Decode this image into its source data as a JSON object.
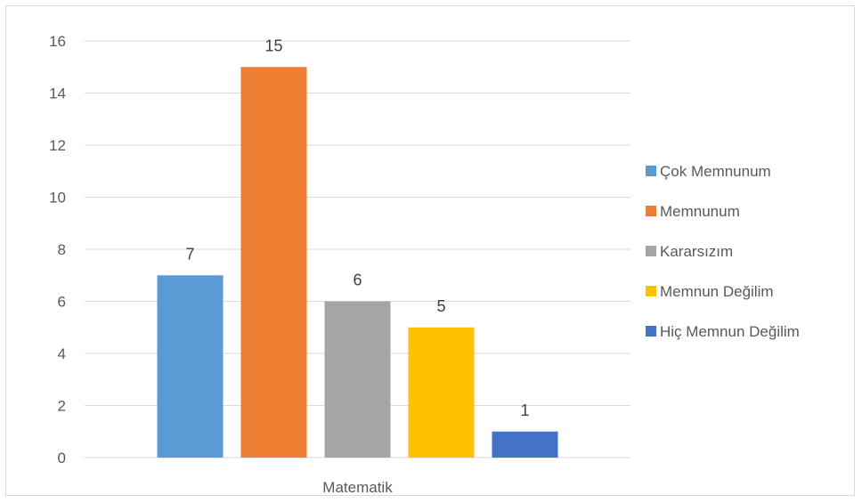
{
  "chart_data": {
    "type": "bar",
    "title": "",
    "xlabel": "",
    "ylabel": "",
    "categories": [
      "Matematik"
    ],
    "series": [
      {
        "name": "Çok Memnunum",
        "values": [
          7
        ],
        "color": "#5b9bd5"
      },
      {
        "name": "Memnunum",
        "values": [
          15
        ],
        "color": "#ed7d31"
      },
      {
        "name": "Kararsızım",
        "values": [
          6
        ],
        "color": "#a5a5a5"
      },
      {
        "name": "Memnun Değilim",
        "values": [
          5
        ],
        "color": "#ffc000"
      },
      {
        "name": "Hiç Memnun Değilim",
        "values": [
          1
        ],
        "color": "#4472c4"
      }
    ],
    "ylim": [
      0,
      16
    ],
    "yticks": [
      0,
      2,
      4,
      6,
      8,
      10,
      12,
      14,
      16
    ],
    "grid": true,
    "legend": "right",
    "data_labels": true
  }
}
